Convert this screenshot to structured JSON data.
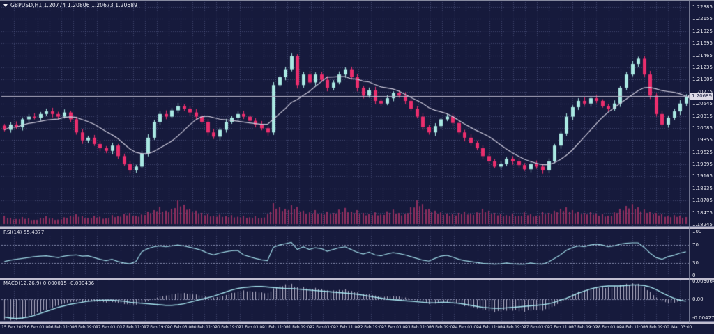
{
  "window": {
    "title": "GBPUSD,H1 1.20774 1.20806 1.20673 1.20689"
  },
  "rsi_pane": {
    "label": "RSI(14) 55.4377",
    "scale_labels": [
      "100",
      "70",
      "30",
      "0"
    ]
  },
  "macd_pane": {
    "label": "MACD(12,26,9) 0.000015 -0.000436",
    "scale_labels": [
      "0.003064",
      "0.00",
      "-0.004279"
    ]
  },
  "colors": {
    "background": "#161a3c",
    "grid": "#6c74a6",
    "level_line": "#8a90b2",
    "bull": "#a9e8e2",
    "bear": "#ea2e6d",
    "ma_line": "#cfccdd",
    "volume": "#8f2f5f",
    "rsi_line": "#9fd9e6",
    "macd_signal": "#a6e4ee",
    "macd_hist": "#c6c3d8",
    "separator": "#c0bed0",
    "axis_text": "#e6e7ee",
    "bid_line": "#b5b3c6",
    "bid_tag_bg": "#dcdae6",
    "bid_tag_text": "#161a3c"
  },
  "chart_data": {
    "type": "candlestick",
    "symbol": "GBPUSD",
    "timeframe": "H1",
    "title": "GBPUSD,H1",
    "current_ohlc": {
      "open": 1.20774,
      "high": 1.20806,
      "low": 1.20673,
      "close": 1.20689
    },
    "bid_price": 1.20689,
    "bid_tag": "1.20689",
    "y_axis": {
      "max": 1.22385,
      "min": 1.18245,
      "tick_step": 0.0023,
      "tick_labels": [
        "1.22385",
        "1.22155",
        "1.21925",
        "1.21695",
        "1.21465",
        "1.21235",
        "1.21005",
        "1.20775",
        "1.20545",
        "1.20315",
        "1.20085",
        "1.19855",
        "1.19625",
        "1.19395",
        "1.19165",
        "1.18935",
        "1.18705",
        "1.18475",
        "1.18245"
      ]
    },
    "x_axis": {
      "tick_labels": [
        "15 Feb 2023",
        "16 Feb 03:00",
        "16 Feb 11:00",
        "16 Feb 19:00",
        "17 Feb 03:00",
        "17 Feb 11:00",
        "17 Feb 19:00",
        "20 Feb 03:00",
        "20 Feb 11:00",
        "20 Feb 19:00",
        "21 Feb 03:00",
        "21 Feb 11:00",
        "21 Feb 19:00",
        "22 Feb 03:00",
        "22 Feb 11:00",
        "22 Feb 19:00",
        "23 Feb 03:00",
        "23 Feb 11:00",
        "23 Feb 19:00",
        "24 Feb 03:00",
        "24 Feb 11:00",
        "24 Feb 19:00",
        "27 Feb 03:00",
        "27 Feb 11:00",
        "27 Feb 19:00",
        "28 Feb 03:00",
        "28 Feb 11:00",
        "28 Feb 19:00",
        "1 Mar 03:00"
      ]
    },
    "series": {
      "first_open": 1.2013,
      "closes": [
        1.2005,
        1.2015,
        1.201,
        1.2025,
        1.203,
        1.2028,
        1.2035,
        1.204,
        1.2035,
        1.203,
        1.2038,
        1.2025,
        1.2,
        1.1985,
        1.199,
        1.1978,
        1.197,
        1.1965,
        1.1975,
        1.1955,
        1.194,
        1.1928,
        1.1935,
        1.196,
        1.199,
        1.202,
        1.2035,
        1.203,
        1.2042,
        1.205,
        1.2045,
        1.2038,
        1.203,
        1.202,
        1.2,
        1.1992,
        1.2005,
        1.202,
        1.2028,
        1.2035,
        1.203,
        1.2022,
        1.2015,
        1.2008,
        1.2,
        1.209,
        1.2105,
        1.212,
        1.2145,
        1.209,
        1.211,
        1.2095,
        1.211,
        1.21,
        1.2085,
        1.2095,
        1.211,
        1.212,
        1.2105,
        1.2085,
        1.207,
        1.208,
        1.206,
        1.2055,
        1.2065,
        1.2075,
        1.207,
        1.206,
        1.2045,
        1.203,
        1.201,
        1.2,
        1.2012,
        1.2025,
        1.203,
        1.2018,
        1.2,
        1.199,
        1.198,
        1.197,
        1.1955,
        1.1945,
        1.1935,
        1.194,
        1.195,
        1.1945,
        1.1938,
        1.193,
        1.194,
        1.1935,
        1.1928,
        1.1945,
        1.1975,
        1.1998,
        1.203,
        1.2048,
        1.206,
        1.2055,
        1.2065,
        1.206,
        1.205,
        1.2045,
        1.2055,
        1.2085,
        1.211,
        1.213,
        1.214,
        1.211,
        1.207,
        1.2035,
        1.2015,
        1.2028,
        1.204,
        1.2055,
        1.2069
      ],
      "volume_rel": [
        0.3,
        0.22,
        0.18,
        0.25,
        0.2,
        0.15,
        0.22,
        0.28,
        0.2,
        0.16,
        0.24,
        0.3,
        0.35,
        0.28,
        0.22,
        0.3,
        0.26,
        0.2,
        0.32,
        0.28,
        0.36,
        0.4,
        0.3,
        0.34,
        0.45,
        0.5,
        0.62,
        0.48,
        0.55,
        0.85,
        0.7,
        0.55,
        0.48,
        0.4,
        0.36,
        0.3,
        0.34,
        0.28,
        0.32,
        0.26,
        0.3,
        0.24,
        0.28,
        0.22,
        0.35,
        0.75,
        0.6,
        0.55,
        0.68,
        0.62,
        0.48,
        0.42,
        0.5,
        0.38,
        0.45,
        0.4,
        0.52,
        0.58,
        0.45,
        0.5,
        0.4,
        0.36,
        0.42,
        0.34,
        0.46,
        0.52,
        0.4,
        0.36,
        0.6,
        0.85,
        0.72,
        0.55,
        0.48,
        0.42,
        0.38,
        0.35,
        0.4,
        0.45,
        0.38,
        0.42,
        0.55,
        0.48,
        0.4,
        0.36,
        0.32,
        0.38,
        0.3,
        0.42,
        0.35,
        0.3,
        0.45,
        0.4,
        0.48,
        0.55,
        0.6,
        0.5,
        0.45,
        0.4,
        0.44,
        0.38,
        0.35,
        0.3,
        0.42,
        0.55,
        0.65,
        0.72,
        0.6,
        0.52,
        0.45,
        0.4,
        0.35,
        0.28,
        0.32,
        0.3,
        0.25
      ]
    },
    "indicators": {
      "ma": {
        "name": "Moving Average",
        "visual_period": 10
      },
      "rsi": {
        "period": 14,
        "current": 55.4377,
        "levels": [
          70,
          30
        ],
        "range": [
          0,
          100
        ],
        "values": [
          33,
          36,
          38,
          40,
          42,
          44,
          45,
          46,
          44,
          42,
          45,
          47,
          48,
          45,
          46,
          42,
          38,
          35,
          38,
          33,
          30,
          28,
          33,
          55,
          62,
          66,
          68,
          66,
          68,
          70,
          68,
          65,
          62,
          58,
          52,
          48,
          52,
          55,
          57,
          58,
          48,
          44,
          40,
          37,
          35,
          65,
          70,
          73,
          76,
          60,
          66,
          60,
          64,
          62,
          56,
          60,
          64,
          66,
          60,
          54,
          50,
          54,
          48,
          46,
          50,
          53,
          51,
          48,
          44,
          40,
          36,
          34,
          40,
          45,
          47,
          43,
          38,
          35,
          33,
          31,
          29,
          28,
          27,
          28,
          30,
          28,
          27,
          27,
          30,
          28,
          27,
          32,
          40,
          48,
          58,
          64,
          68,
          66,
          70,
          72,
          70,
          66,
          68,
          72,
          74,
          75,
          75,
          65,
          52,
          42,
          38,
          44,
          47,
          52,
          55
        ]
      },
      "macd": {
        "fast": 12,
        "slow": 26,
        "signal_period": 9,
        "current_main": 1.5e-05,
        "current_signal": -0.000436,
        "scale_max": 0.003064,
        "scale_min": -0.004279,
        "signal": [
          -0.0035,
          -0.0037,
          -0.0038,
          -0.0037,
          -0.0035,
          -0.0032,
          -0.0028,
          -0.0024,
          -0.002,
          -0.0016,
          -0.0013,
          -0.001,
          -0.0008,
          -0.0006,
          -0.0004,
          -0.0003,
          -0.0002,
          -0.0002,
          -0.0002,
          -0.0003,
          -0.0004,
          -0.0006,
          -0.0007,
          -0.0008,
          -0.0009,
          -0.001,
          -0.0011,
          -0.0012,
          -0.0012,
          -0.0011,
          -0.0009,
          -0.0006,
          -0.0003,
          0.0,
          0.0003,
          0.0006,
          0.001,
          0.0014,
          0.0018,
          0.0021,
          0.0023,
          0.0024,
          0.0025,
          0.0025,
          0.0024,
          0.0023,
          0.0022,
          0.0021,
          0.0021,
          0.002,
          0.0019,
          0.0018,
          0.0017,
          0.0016,
          0.0015,
          0.0014,
          0.0013,
          0.0012,
          0.0011,
          0.001,
          0.0008,
          0.0006,
          0.0004,
          0.0002,
          0.0,
          -0.0001,
          -0.0002,
          -0.0003,
          -0.0004,
          -0.0005,
          -0.0006,
          -0.0007,
          -0.0007,
          -0.0006,
          -0.0006,
          -0.0007,
          -0.0008,
          -0.001,
          -0.0012,
          -0.0014,
          -0.0016,
          -0.0017,
          -0.0018,
          -0.0018,
          -0.0017,
          -0.0016,
          -0.0015,
          -0.0014,
          -0.0013,
          -0.0012,
          -0.0011,
          -0.0009,
          -0.0006,
          -0.0002,
          0.0002,
          0.0007,
          0.0012,
          0.0016,
          0.002,
          0.0023,
          0.0025,
          0.0026,
          0.0026,
          0.0026,
          0.0027,
          0.0028,
          0.0028,
          0.0027,
          0.0024,
          0.0019,
          0.0013,
          0.0007,
          0.0002,
          -0.0002,
          -0.0004
        ],
        "histogram": [
          -0.004,
          -0.0041,
          -0.004,
          -0.0038,
          -0.0035,
          -0.003,
          -0.0025,
          -0.002,
          -0.0016,
          -0.0012,
          -0.0008,
          -0.0005,
          -0.0004,
          -0.0005,
          -0.0004,
          -0.0004,
          -0.0005,
          -0.0006,
          -0.0005,
          -0.0007,
          -0.0009,
          -0.0011,
          -0.001,
          -0.0007,
          -0.0003,
          0.0002,
          0.0006,
          0.0008,
          0.0011,
          0.0013,
          0.0013,
          0.0012,
          0.001,
          0.0008,
          0.0005,
          0.0004,
          0.0006,
          0.0009,
          0.0013,
          0.0016,
          0.0018,
          0.0017,
          0.0016,
          0.0014,
          0.0013,
          0.0022,
          0.0027,
          0.003,
          0.0031,
          0.0024,
          0.0025,
          0.0022,
          0.0023,
          0.0021,
          0.0018,
          0.0018,
          0.0019,
          0.002,
          0.0017,
          0.0014,
          0.0011,
          0.0011,
          0.0008,
          0.0006,
          0.0006,
          0.0007,
          0.0006,
          0.0004,
          0.0001,
          -0.0002,
          -0.0006,
          -0.0009,
          -0.0008,
          -0.0006,
          -0.0005,
          -0.0007,
          -0.001,
          -0.0013,
          -0.0015,
          -0.0018,
          -0.0021,
          -0.0023,
          -0.0025,
          -0.0024,
          -0.0022,
          -0.0022,
          -0.0023,
          -0.0024,
          -0.0022,
          -0.0021,
          -0.0022,
          -0.0019,
          -0.0013,
          -0.0006,
          0.0003,
          0.001,
          0.0016,
          0.0018,
          0.0022,
          0.0024,
          0.0025,
          0.0024,
          0.0026,
          0.0029,
          0.0031,
          0.0032,
          0.0031,
          0.0025,
          0.0015,
          0.0004,
          -0.0004,
          -0.0007,
          -0.0006,
          -0.0003,
          0.0
        ]
      }
    }
  }
}
